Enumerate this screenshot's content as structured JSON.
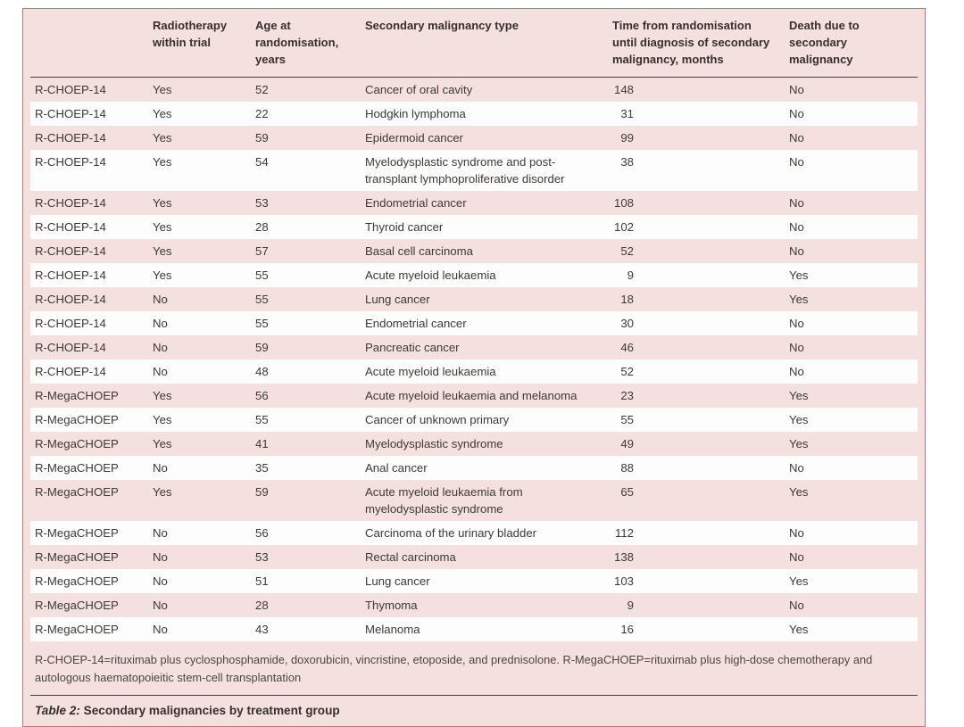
{
  "table": {
    "caption_label": "Table 2:",
    "caption_text": " Secondary malignancies by treatment group",
    "footnote": "R-CHOEP-14=rituximab plus cyclosphosphamide, doxorubicin, vincristine, etoposide, and prednisolone. R-MegaCHOEP=rituximab plus high-dose chemotherapy and autologous haematopoieitic stem-cell transplantation",
    "columns": [
      "",
      "Radiotherapy within trial",
      "Age at randomisation, years",
      "Secondary malignancy type",
      "Time from randomisation until diagnosis of secondary malignancy, months",
      "Death due to secondary malignancy"
    ],
    "rows": [
      {
        "trial": "R-CHOEP-14",
        "radiotherapy": "Yes",
        "age": "52",
        "type": "Cancer of oral cavity",
        "time": "148",
        "death": "No"
      },
      {
        "trial": "R-CHOEP-14",
        "radiotherapy": "Yes",
        "age": "22",
        "type": "Hodgkin lymphoma",
        "time": "31",
        "death": "No"
      },
      {
        "trial": "R-CHOEP-14",
        "radiotherapy": "Yes",
        "age": "59",
        "type": "Epidermoid cancer",
        "time": "99",
        "death": "No"
      },
      {
        "trial": "R-CHOEP-14",
        "radiotherapy": "Yes",
        "age": "54",
        "type": "Myelodysplastic syndrome and post-transplant lymphoproliferative disorder",
        "time": "38",
        "death": "No"
      },
      {
        "trial": "R-CHOEP-14",
        "radiotherapy": "Yes",
        "age": "53",
        "type": "Endometrial cancer",
        "time": "108",
        "death": "No"
      },
      {
        "trial": "R-CHOEP-14",
        "radiotherapy": "Yes",
        "age": "28",
        "type": "Thyroid cancer",
        "time": "102",
        "death": "No"
      },
      {
        "trial": "R-CHOEP-14",
        "radiotherapy": "Yes",
        "age": "57",
        "type": "Basal cell carcinoma",
        "time": "52",
        "death": "No"
      },
      {
        "trial": "R-CHOEP-14",
        "radiotherapy": "Yes",
        "age": "55",
        "type": "Acute myeloid leukaemia",
        "time": "9",
        "death": "Yes"
      },
      {
        "trial": "R-CHOEP-14",
        "radiotherapy": "No",
        "age": "55",
        "type": "Lung cancer",
        "time": "18",
        "death": "Yes"
      },
      {
        "trial": "R-CHOEP-14",
        "radiotherapy": "No",
        "age": "55",
        "type": "Endometrial cancer",
        "time": "30",
        "death": "No"
      },
      {
        "trial": "R-CHOEP-14",
        "radiotherapy": "No",
        "age": "59",
        "type": "Pancreatic cancer",
        "time": "46",
        "death": "No"
      },
      {
        "trial": "R-CHOEP-14",
        "radiotherapy": "No",
        "age": "48",
        "type": "Acute myeloid leukaemia",
        "time": "52",
        "death": "No"
      },
      {
        "trial": "R-MegaCHOEP",
        "radiotherapy": "Yes",
        "age": "56",
        "type": "Acute myeloid leukaemia and melanoma",
        "time": "23",
        "death": "Yes"
      },
      {
        "trial": "R-MegaCHOEP",
        "radiotherapy": "Yes",
        "age": "55",
        "type": "Cancer of unknown primary",
        "time": "55",
        "death": "Yes"
      },
      {
        "trial": "R-MegaCHOEP",
        "radiotherapy": "Yes",
        "age": "41",
        "type": "Myelodysplastic syndrome",
        "time": "49",
        "death": "Yes"
      },
      {
        "trial": "R-MegaCHOEP",
        "radiotherapy": "No",
        "age": "35",
        "type": "Anal cancer",
        "time": "88",
        "death": "No"
      },
      {
        "trial": "R-MegaCHOEP",
        "radiotherapy": "Yes",
        "age": "59",
        "type": "Acute myeloid leukaemia from myelodysplastic syndrome",
        "time": "65",
        "death": "Yes"
      },
      {
        "trial": "R-MegaCHOEP",
        "radiotherapy": "No",
        "age": "56",
        "type": "Carcinoma of the urinary bladder",
        "time": "112",
        "death": "No"
      },
      {
        "trial": "R-MegaCHOEP",
        "radiotherapy": "No",
        "age": "53",
        "type": "Rectal carcinoma",
        "time": "138",
        "death": "No"
      },
      {
        "trial": "R-MegaCHOEP",
        "radiotherapy": "No",
        "age": "51",
        "type": "Lung cancer",
        "time": "103",
        "death": "Yes"
      },
      {
        "trial": "R-MegaCHOEP",
        "radiotherapy": "No",
        "age": "28",
        "type": "Thymoma",
        "time": "9",
        "death": "No"
      },
      {
        "trial": "R-MegaCHOEP",
        "radiotherapy": "No",
        "age": "43",
        "type": "Melanoma",
        "time": "16",
        "death": "Yes"
      }
    ],
    "colors": {
      "row_pink": "#f4e0dd",
      "row_white": "#fefdfd",
      "card_border": "#c6707d",
      "rule": "#454040",
      "text": "#3e3936"
    }
  }
}
